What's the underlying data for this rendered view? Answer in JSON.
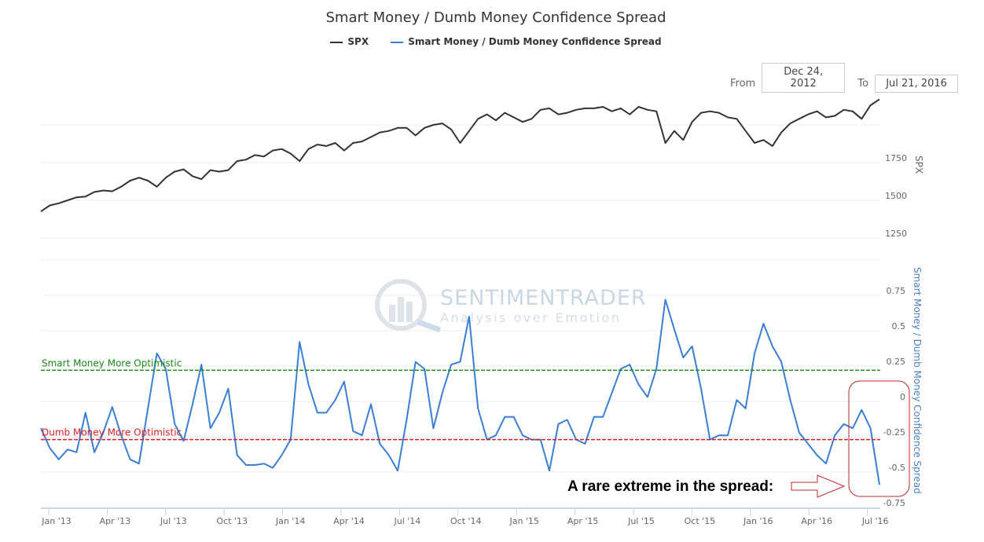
{
  "title": "Smart Money / Dumb Money Confidence Spread",
  "legend": [
    {
      "label": "SPX",
      "color": "#333333"
    },
    {
      "label": "Smart Money / Dumb Money Confidence Spread",
      "color": "#3a7fd5"
    }
  ],
  "range": {
    "from_label": "From",
    "from_value": "Dec 24, 2012",
    "to_label": "To",
    "to_value": "Jul 21, 2016"
  },
  "watermark": {
    "brand": "SENTIMENTRADER",
    "tagline": "Analysis over Emotion"
  },
  "annotation_text": "A rare extreme in the spread:",
  "chart_data": [
    {
      "type": "line",
      "name": "SPX",
      "ylabel": "SPX",
      "yticks": [
        1250,
        1500,
        1750
      ],
      "ygrid": [
        1250,
        1500,
        1750,
        2000
      ],
      "x_start": "2012-12-24",
      "x_interval": "2 weeks",
      "color": "#333333",
      "values": [
        1426,
        1466,
        1480,
        1500,
        1520,
        1525,
        1555,
        1565,
        1560,
        1590,
        1630,
        1650,
        1630,
        1590,
        1650,
        1690,
        1705,
        1660,
        1640,
        1700,
        1690,
        1700,
        1760,
        1770,
        1800,
        1790,
        1830,
        1840,
        1810,
        1760,
        1840,
        1870,
        1860,
        1880,
        1830,
        1880,
        1890,
        1920,
        1950,
        1960,
        1980,
        1980,
        1930,
        1980,
        2000,
        2010,
        1970,
        1880,
        1960,
        2040,
        2070,
        2030,
        2080,
        2050,
        2020,
        2040,
        2100,
        2110,
        2070,
        2080,
        2100,
        2110,
        2110,
        2120,
        2090,
        2110,
        2070,
        2120,
        2100,
        2090,
        1880,
        1960,
        1900,
        2020,
        2080,
        2090,
        2080,
        2050,
        2040,
        1960,
        1880,
        1900,
        1860,
        1950,
        2010,
        2040,
        2070,
        2090,
        2050,
        2060,
        2100,
        2090,
        2040,
        2130,
        2170
      ]
    },
    {
      "type": "line",
      "name": "Smart Money / Dumb Money Confidence Spread",
      "ylabel": "Smart Money / Dumb Money Confidence Spread",
      "yticks": [
        "0.75",
        "0.5",
        "0.25",
        "0",
        "-0.25",
        "-0.5",
        "-0.75"
      ],
      "ylim": [
        -0.75,
        1.0
      ],
      "x_start": "2012-12-24",
      "x_interval": "2 weeks",
      "color": "#3a7fd5",
      "values": [
        -0.19,
        -0.33,
        -0.41,
        -0.34,
        -0.36,
        -0.08,
        -0.36,
        -0.22,
        -0.04,
        -0.24,
        -0.41,
        -0.44,
        -0.05,
        0.34,
        0.23,
        -0.16,
        -0.28,
        -0.02,
        0.26,
        -0.19,
        -0.08,
        0.09,
        -0.38,
        -0.45,
        -0.45,
        -0.44,
        -0.47,
        -0.38,
        -0.27,
        0.42,
        0.12,
        -0.08,
        -0.08,
        0.01,
        0.14,
        -0.21,
        -0.24,
        -0.02,
        -0.3,
        -0.38,
        -0.49,
        -0.13,
        0.28,
        0.23,
        -0.19,
        0.06,
        0.26,
        0.28,
        0.6,
        -0.05,
        -0.27,
        -0.24,
        -0.11,
        -0.11,
        -0.24,
        -0.27,
        -0.27,
        -0.49,
        -0.16,
        -0.13,
        -0.27,
        -0.3,
        -0.11,
        -0.11,
        0.06,
        0.23,
        0.26,
        0.12,
        0.03,
        0.23,
        0.72,
        0.51,
        0.31,
        0.39,
        0.09,
        -0.27,
        -0.24,
        -0.24,
        0.01,
        -0.05,
        0.34,
        0.55,
        0.39,
        0.28,
        0.01,
        -0.22,
        -0.3,
        -0.38,
        -0.44,
        -0.24,
        -0.16,
        -0.19,
        -0.06,
        -0.19,
        -0.59
      ],
      "plot_lines": [
        {
          "label": "Smart Money More Optimistic",
          "value": 0.22,
          "color": "#1a8a1a"
        },
        {
          "label": "Dumb Money More Optimistic",
          "value": -0.27,
          "color": "#d42020"
        }
      ]
    }
  ],
  "xticks": [
    "Jan '13",
    "Apr '13",
    "Jul '13",
    "Oct '13",
    "Jan '14",
    "Apr '14",
    "Jul '14",
    "Oct '14",
    "Jan '15",
    "Apr '15",
    "Jul '15",
    "Oct '15",
    "Jan '16",
    "Apr '16",
    "Jul '16"
  ]
}
